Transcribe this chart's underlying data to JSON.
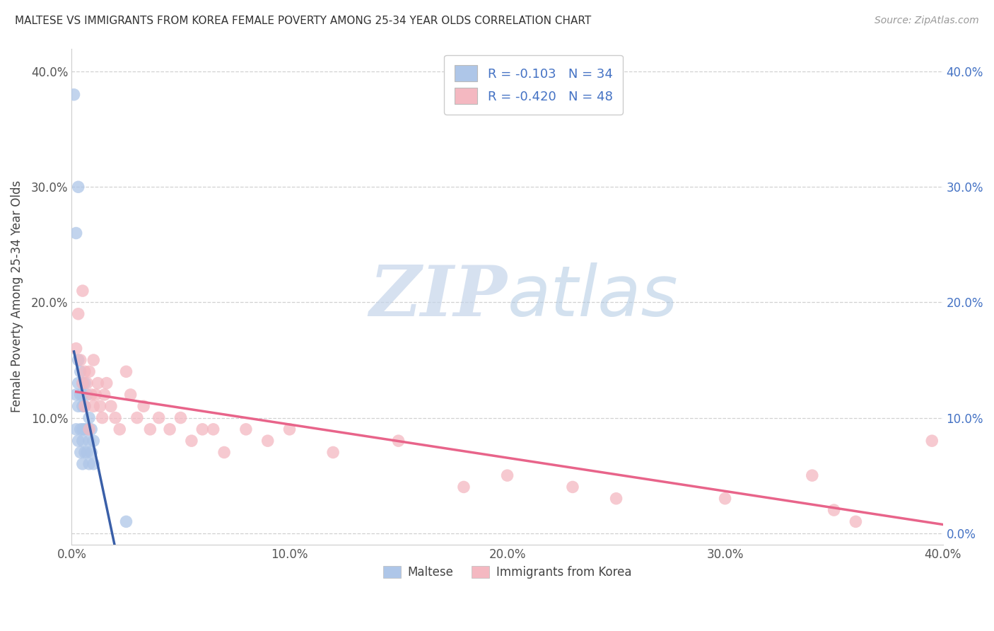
{
  "title": "MALTESE VS IMMIGRANTS FROM KOREA FEMALE POVERTY AMONG 25-34 YEAR OLDS CORRELATION CHART",
  "source": "Source: ZipAtlas.com",
  "ylabel": "Female Poverty Among 25-34 Year Olds",
  "xlim": [
    0.0,
    0.4
  ],
  "ylim": [
    -0.01,
    0.42
  ],
  "xticks": [
    0.0,
    0.1,
    0.2,
    0.3,
    0.4
  ],
  "yticks": [
    0.0,
    0.1,
    0.2,
    0.3,
    0.4
  ],
  "xticklabels": [
    "0.0%",
    "10.0%",
    "20.0%",
    "30.0%",
    "40.0%"
  ],
  "yticklabels": [
    "",
    "10.0%",
    "20.0%",
    "30.0%",
    "40.0%"
  ],
  "right_yticklabels": [
    "0.0%",
    "10.0%",
    "20.0%",
    "30.0%",
    "40.0%"
  ],
  "maltese_color": "#aec6e8",
  "korea_color": "#f4b8c1",
  "maltese_line_color": "#3a5fa8",
  "korea_line_color": "#e8648a",
  "maltese_line_ext_color": "#a0b8e0",
  "watermark_zip": "ZIP",
  "watermark_atlas": "atlas",
  "maltese_x": [
    0.001,
    0.002,
    0.002,
    0.002,
    0.003,
    0.003,
    0.003,
    0.003,
    0.003,
    0.004,
    0.004,
    0.004,
    0.004,
    0.005,
    0.005,
    0.005,
    0.005,
    0.005,
    0.005,
    0.006,
    0.006,
    0.006,
    0.006,
    0.007,
    0.007,
    0.007,
    0.008,
    0.008,
    0.008,
    0.009,
    0.009,
    0.01,
    0.01,
    0.025
  ],
  "maltese_y": [
    0.38,
    0.26,
    0.12,
    0.09,
    0.3,
    0.15,
    0.13,
    0.11,
    0.08,
    0.14,
    0.12,
    0.09,
    0.07,
    0.13,
    0.12,
    0.11,
    0.09,
    0.08,
    0.06,
    0.13,
    0.11,
    0.09,
    0.07,
    0.12,
    0.09,
    0.07,
    0.1,
    0.08,
    0.06,
    0.09,
    0.07,
    0.08,
    0.06,
    0.01
  ],
  "korea_x": [
    0.002,
    0.003,
    0.004,
    0.005,
    0.005,
    0.006,
    0.006,
    0.007,
    0.008,
    0.008,
    0.009,
    0.01,
    0.01,
    0.011,
    0.012,
    0.013,
    0.014,
    0.015,
    0.016,
    0.018,
    0.02,
    0.022,
    0.025,
    0.027,
    0.03,
    0.033,
    0.036,
    0.04,
    0.045,
    0.05,
    0.055,
    0.06,
    0.065,
    0.07,
    0.08,
    0.09,
    0.1,
    0.12,
    0.15,
    0.18,
    0.2,
    0.23,
    0.25,
    0.3,
    0.34,
    0.35,
    0.36,
    0.395
  ],
  "korea_y": [
    0.16,
    0.19,
    0.15,
    0.21,
    0.13,
    0.14,
    0.11,
    0.13,
    0.14,
    0.09,
    0.12,
    0.15,
    0.11,
    0.12,
    0.13,
    0.11,
    0.1,
    0.12,
    0.13,
    0.11,
    0.1,
    0.09,
    0.14,
    0.12,
    0.1,
    0.11,
    0.09,
    0.1,
    0.09,
    0.1,
    0.08,
    0.09,
    0.09,
    0.07,
    0.09,
    0.08,
    0.09,
    0.07,
    0.08,
    0.04,
    0.05,
    0.04,
    0.03,
    0.03,
    0.05,
    0.02,
    0.01,
    0.08
  ]
}
